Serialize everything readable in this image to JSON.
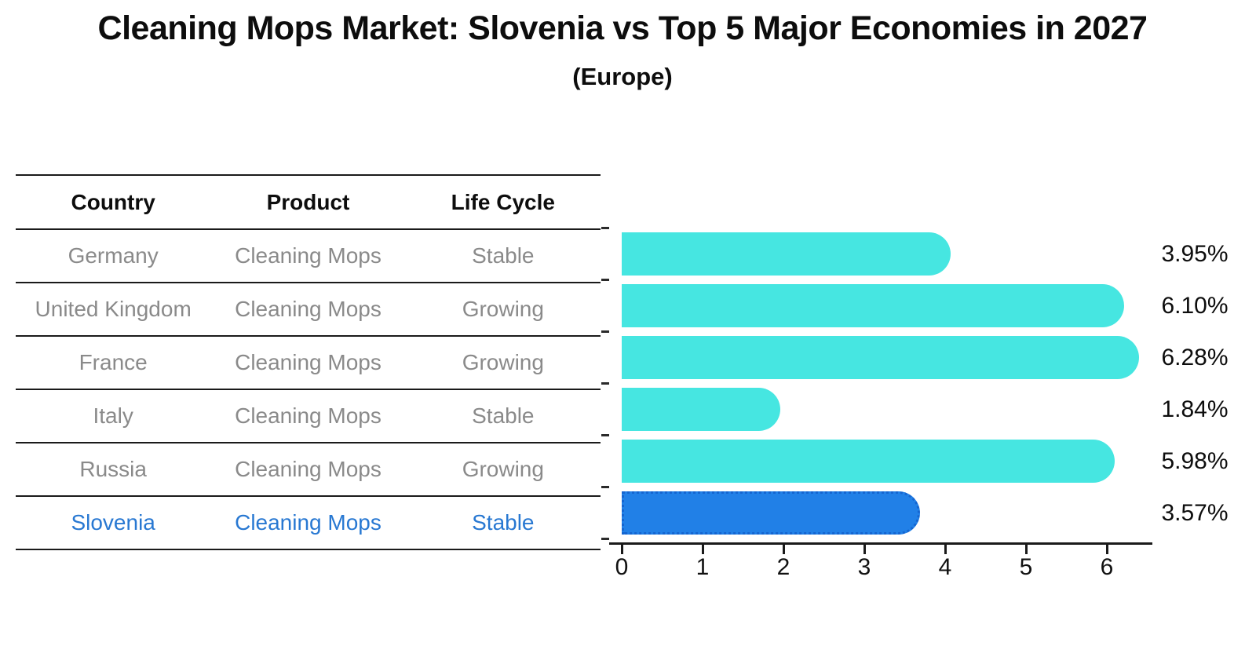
{
  "header": {
    "title": "Cleaning Mops Market: Slovenia vs Top 5 Major Economies in 2027",
    "subtitle": "(Europe)"
  },
  "table": {
    "headers": [
      "Country",
      "Product",
      "Life Cycle"
    ],
    "rows": [
      {
        "country": "Germany",
        "product": "Cleaning Mops",
        "life_cycle": "Stable",
        "highlight": false
      },
      {
        "country": "United Kingdom",
        "product": "Cleaning Mops",
        "life_cycle": "Growing",
        "highlight": false
      },
      {
        "country": "France",
        "product": "Cleaning Mops",
        "life_cycle": "Growing",
        "highlight": false
      },
      {
        "country": "Italy",
        "product": "Cleaning Mops",
        "life_cycle": "Stable",
        "highlight": false
      },
      {
        "country": "Russia",
        "product": "Cleaning Mops",
        "life_cycle": "Growing",
        "highlight": false
      },
      {
        "country": "Slovenia",
        "product": "Cleaning Mops",
        "life_cycle": "Stable",
        "highlight": true
      }
    ]
  },
  "chart_data": {
    "type": "bar",
    "orientation": "horizontal",
    "title": "Cleaning Mops Market: Slovenia vs Top 5 Major Economies in 2027 (Europe)",
    "categories": [
      "Germany",
      "United Kingdom",
      "France",
      "Italy",
      "Russia",
      "Slovenia"
    ],
    "values": [
      3.95,
      6.1,
      6.28,
      1.84,
      5.98,
      3.57
    ],
    "value_labels": [
      "3.95%",
      "6.10%",
      "6.28%",
      "1.84%",
      "5.98%",
      "3.57%"
    ],
    "highlight_index": 5,
    "x_ticks": [
      0,
      1,
      2,
      3,
      4,
      5,
      6
    ],
    "xlim": [
      0,
      6.6
    ],
    "grid": false,
    "legend": "none",
    "colors": {
      "bar": "#46e6e1",
      "highlight_bar": "#2180e7",
      "highlight_border": "#1565d0",
      "highlight_text": "#2878d2",
      "axis": "#1a1a1a",
      "value_text": "#0d0d0d",
      "table_text": "#8a8a8a"
    }
  }
}
